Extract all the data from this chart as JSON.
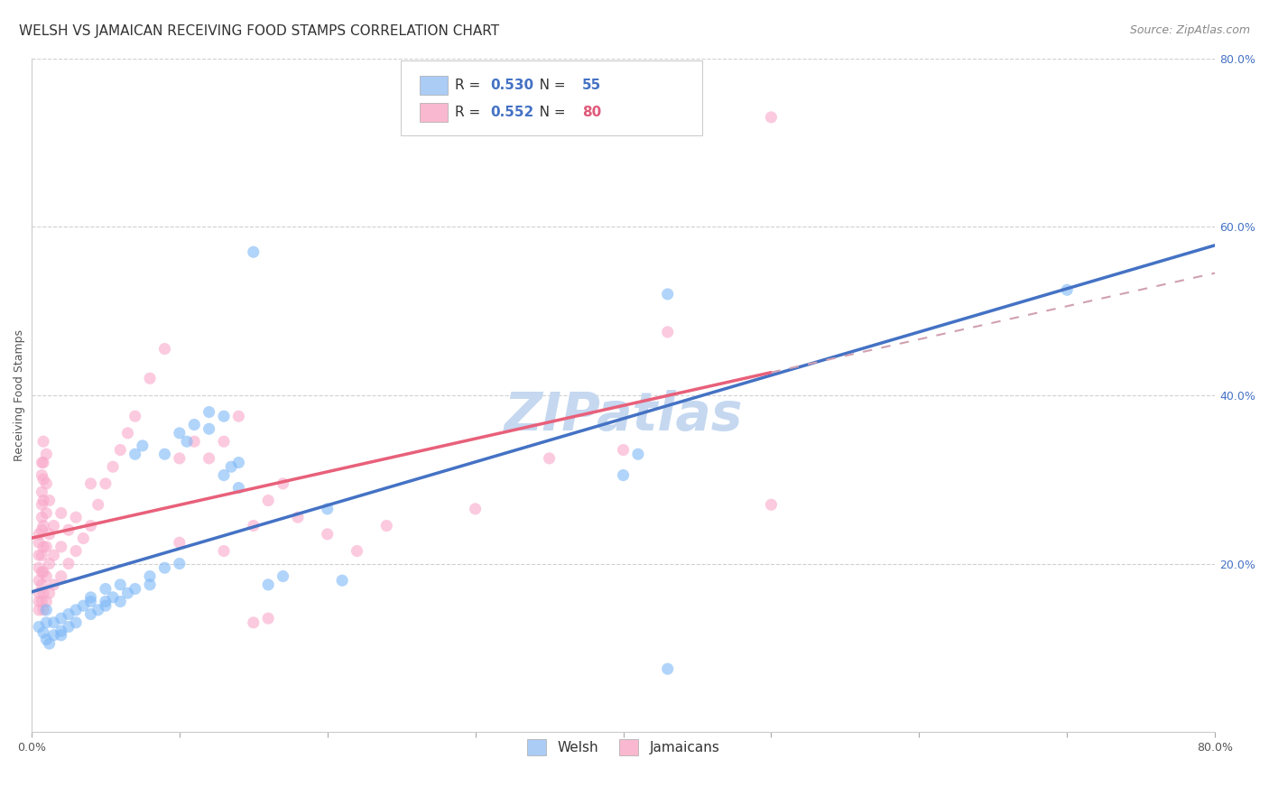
{
  "title": "WELSH VS JAMAICAN RECEIVING FOOD STAMPS CORRELATION CHART",
  "source": "Source: ZipAtlas.com",
  "ylabel": "Receiving Food Stamps",
  "xlabel": "",
  "watermark": "ZIPatlas",
  "xlim": [
    0.0,
    0.8
  ],
  "ylim": [
    0.0,
    0.8
  ],
  "xticks": [
    0.0,
    0.1,
    0.2,
    0.3,
    0.4,
    0.5,
    0.6,
    0.7,
    0.8
  ],
  "yticks": [
    0.0,
    0.2,
    0.4,
    0.6,
    0.8
  ],
  "xtick_labels": [
    "0.0%",
    "",
    "",
    "",
    "",
    "",
    "",
    "",
    "80.0%"
  ],
  "ytick_labels": [
    "",
    "20.0%",
    "40.0%",
    "60.0%",
    "80.0%"
  ],
  "welsh_R": 0.53,
  "welsh_N": 55,
  "jamaican_R": 0.552,
  "jamaican_N": 80,
  "welsh_color": "#7eb8f7",
  "jamaican_color": "#f9a8c9",
  "welsh_line_color": "#4472c4",
  "jamaican_line_color": "#e8607a",
  "legend_welsh_color": "#aaccf5",
  "legend_jamaican_color": "#f9b8cf",
  "welsh_points": [
    [
      0.005,
      0.125
    ],
    [
      0.008,
      0.118
    ],
    [
      0.01,
      0.13
    ],
    [
      0.01,
      0.11
    ],
    [
      0.01,
      0.145
    ],
    [
      0.012,
      0.105
    ],
    [
      0.015,
      0.115
    ],
    [
      0.015,
      0.13
    ],
    [
      0.02,
      0.12
    ],
    [
      0.02,
      0.115
    ],
    [
      0.02,
      0.135
    ],
    [
      0.025,
      0.14
    ],
    [
      0.025,
      0.125
    ],
    [
      0.03,
      0.13
    ],
    [
      0.03,
      0.145
    ],
    [
      0.035,
      0.15
    ],
    [
      0.04,
      0.14
    ],
    [
      0.04,
      0.155
    ],
    [
      0.04,
      0.16
    ],
    [
      0.045,
      0.145
    ],
    [
      0.05,
      0.155
    ],
    [
      0.05,
      0.17
    ],
    [
      0.05,
      0.15
    ],
    [
      0.055,
      0.16
    ],
    [
      0.06,
      0.155
    ],
    [
      0.06,
      0.175
    ],
    [
      0.065,
      0.165
    ],
    [
      0.07,
      0.17
    ],
    [
      0.07,
      0.33
    ],
    [
      0.075,
      0.34
    ],
    [
      0.08,
      0.175
    ],
    [
      0.08,
      0.185
    ],
    [
      0.09,
      0.195
    ],
    [
      0.09,
      0.33
    ],
    [
      0.1,
      0.2
    ],
    [
      0.1,
      0.355
    ],
    [
      0.105,
      0.345
    ],
    [
      0.11,
      0.365
    ],
    [
      0.12,
      0.36
    ],
    [
      0.12,
      0.38
    ],
    [
      0.13,
      0.375
    ],
    [
      0.13,
      0.305
    ],
    [
      0.135,
      0.315
    ],
    [
      0.14,
      0.29
    ],
    [
      0.14,
      0.32
    ],
    [
      0.15,
      0.57
    ],
    [
      0.16,
      0.175
    ],
    [
      0.17,
      0.185
    ],
    [
      0.2,
      0.265
    ],
    [
      0.21,
      0.18
    ],
    [
      0.4,
      0.305
    ],
    [
      0.41,
      0.33
    ],
    [
      0.43,
      0.52
    ],
    [
      0.7,
      0.525
    ],
    [
      0.43,
      0.075
    ]
  ],
  "jamaican_points": [
    [
      0.005,
      0.145
    ],
    [
      0.005,
      0.155
    ],
    [
      0.005,
      0.165
    ],
    [
      0.005,
      0.18
    ],
    [
      0.005,
      0.195
    ],
    [
      0.005,
      0.21
    ],
    [
      0.005,
      0.225
    ],
    [
      0.005,
      0.235
    ],
    [
      0.007,
      0.155
    ],
    [
      0.007,
      0.175
    ],
    [
      0.007,
      0.19
    ],
    [
      0.007,
      0.21
    ],
    [
      0.007,
      0.24
    ],
    [
      0.007,
      0.255
    ],
    [
      0.007,
      0.27
    ],
    [
      0.007,
      0.285
    ],
    [
      0.007,
      0.305
    ],
    [
      0.007,
      0.32
    ],
    [
      0.008,
      0.145
    ],
    [
      0.008,
      0.165
    ],
    [
      0.008,
      0.19
    ],
    [
      0.008,
      0.22
    ],
    [
      0.008,
      0.245
    ],
    [
      0.008,
      0.275
    ],
    [
      0.008,
      0.3
    ],
    [
      0.008,
      0.32
    ],
    [
      0.008,
      0.345
    ],
    [
      0.01,
      0.155
    ],
    [
      0.01,
      0.185
    ],
    [
      0.01,
      0.22
    ],
    [
      0.01,
      0.26
    ],
    [
      0.01,
      0.295
    ],
    [
      0.01,
      0.33
    ],
    [
      0.012,
      0.165
    ],
    [
      0.012,
      0.2
    ],
    [
      0.012,
      0.235
    ],
    [
      0.012,
      0.275
    ],
    [
      0.015,
      0.175
    ],
    [
      0.015,
      0.21
    ],
    [
      0.015,
      0.245
    ],
    [
      0.02,
      0.185
    ],
    [
      0.02,
      0.22
    ],
    [
      0.02,
      0.26
    ],
    [
      0.025,
      0.2
    ],
    [
      0.025,
      0.24
    ],
    [
      0.03,
      0.215
    ],
    [
      0.03,
      0.255
    ],
    [
      0.035,
      0.23
    ],
    [
      0.04,
      0.245
    ],
    [
      0.04,
      0.295
    ],
    [
      0.045,
      0.27
    ],
    [
      0.05,
      0.295
    ],
    [
      0.055,
      0.315
    ],
    [
      0.06,
      0.335
    ],
    [
      0.065,
      0.355
    ],
    [
      0.07,
      0.375
    ],
    [
      0.08,
      0.42
    ],
    [
      0.09,
      0.455
    ],
    [
      0.1,
      0.225
    ],
    [
      0.1,
      0.325
    ],
    [
      0.11,
      0.345
    ],
    [
      0.12,
      0.325
    ],
    [
      0.13,
      0.215
    ],
    [
      0.13,
      0.345
    ],
    [
      0.14,
      0.375
    ],
    [
      0.15,
      0.245
    ],
    [
      0.15,
      0.13
    ],
    [
      0.16,
      0.135
    ],
    [
      0.16,
      0.275
    ],
    [
      0.17,
      0.295
    ],
    [
      0.18,
      0.255
    ],
    [
      0.2,
      0.235
    ],
    [
      0.22,
      0.215
    ],
    [
      0.24,
      0.245
    ],
    [
      0.3,
      0.265
    ],
    [
      0.35,
      0.325
    ],
    [
      0.4,
      0.335
    ],
    [
      0.43,
      0.475
    ],
    [
      0.5,
      0.73
    ],
    [
      0.5,
      0.27
    ]
  ],
  "background_color": "#ffffff",
  "grid_color": "#d0d0d0",
  "title_fontsize": 11,
  "axis_label_fontsize": 9,
  "tick_fontsize": 9,
  "legend_fontsize": 11,
  "watermark_fontsize": 42,
  "watermark_color": "#c5d8f0",
  "source_fontsize": 9,
  "point_size": 90,
  "point_alpha": 0.6
}
